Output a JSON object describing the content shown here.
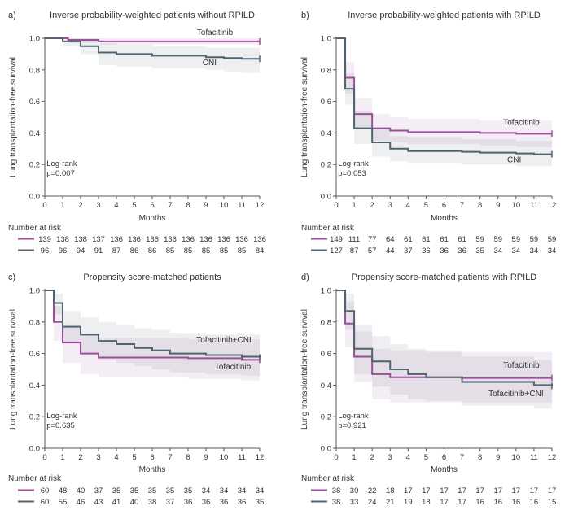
{
  "colors": {
    "tofacitinib": "#9b4f9b",
    "cni": "#4f6470",
    "axis": "#555555",
    "text": "#333333"
  },
  "chart_data": [
    {
      "panel": "a)",
      "type": "line",
      "title": "Inverse probability-weighted patients without RPILD",
      "xlabel": "Months",
      "ylabel": "Lung transplantation-free survival",
      "xlim": [
        0,
        12
      ],
      "ylim": [
        0,
        1
      ],
      "xticks": [
        "0",
        "1",
        "2",
        "3",
        "4",
        "5",
        "6",
        "7",
        "8",
        "9",
        "10",
        "11",
        "12"
      ],
      "yticks": [
        "0.0",
        "0.2",
        "0.4",
        "0.6",
        "0.8",
        "1.0"
      ],
      "logrank_label": "Log-rank",
      "p_value": "p=0.007",
      "risk_title": "Number at risk",
      "series": [
        {
          "key": "tofacitinib",
          "name": "Tofacitinib",
          "color": "#9b4f9b",
          "steps": [
            [
              0,
              1.0
            ],
            [
              1.3,
              0.99
            ],
            [
              3,
              0.98
            ],
            [
              12,
              0.98
            ]
          ],
          "ci": [
            [
              0,
              1.0,
              1.0
            ],
            [
              1.3,
              0.97,
              1.0
            ],
            [
              3,
              0.96,
              1.0
            ],
            [
              12,
              0.96,
              1.0
            ]
          ],
          "risk": [
            "139",
            "138",
            "138",
            "137",
            "136",
            "136",
            "136",
            "136",
            "136",
            "136",
            "136",
            "136",
            "136"
          ]
        },
        {
          "key": "cni",
          "name": "CNI",
          "color": "#4f6470",
          "steps": [
            [
              0,
              1.0
            ],
            [
              1,
              0.98
            ],
            [
              2,
              0.95
            ],
            [
              3,
              0.91
            ],
            [
              4,
              0.9
            ],
            [
              6,
              0.89
            ],
            [
              9,
              0.88
            ],
            [
              10,
              0.875
            ],
            [
              11,
              0.87
            ],
            [
              12,
              0.87
            ]
          ],
          "ci": [
            [
              0,
              1.0,
              1.0
            ],
            [
              1,
              0.95,
              1.0
            ],
            [
              2,
              0.9,
              1.0
            ],
            [
              3,
              0.83,
              0.97
            ],
            [
              4,
              0.82,
              0.96
            ],
            [
              6,
              0.81,
              0.95
            ],
            [
              9,
              0.8,
              0.94
            ],
            [
              10,
              0.79,
              0.94
            ],
            [
              11,
              0.78,
              0.94
            ],
            [
              12,
              0.78,
              0.94
            ]
          ],
          "risk": [
            "96",
            "96",
            "94",
            "91",
            "87",
            "86",
            "86",
            "85",
            "85",
            "85",
            "85",
            "85",
            "84"
          ]
        }
      ],
      "labels": [
        {
          "series": "tofacitinib",
          "text": "Tofacitinib",
          "at": [
            9.5,
            1.02
          ]
        },
        {
          "series": "cni",
          "text": "CNI",
          "at": [
            9.2,
            0.83
          ]
        }
      ],
      "logrank_at": [
        0.1,
        0.19
      ]
    },
    {
      "panel": "b)",
      "type": "line",
      "title": "Inverse probability-weighted patients with RPILD",
      "xlabel": "Months",
      "ylabel": "Lung transplantation-free survival",
      "xlim": [
        0,
        12
      ],
      "ylim": [
        0,
        1
      ],
      "xticks": [
        "0",
        "1",
        "2",
        "3",
        "4",
        "5",
        "6",
        "7",
        "8",
        "9",
        "10",
        "11",
        "12"
      ],
      "yticks": [
        "0.0",
        "0.2",
        "0.4",
        "0.6",
        "0.8",
        "1.0"
      ],
      "logrank_label": "Log-rank",
      "p_value": "p=0.053",
      "risk_title": "Number at risk",
      "series": [
        {
          "key": "tofacitinib",
          "name": "Tofacitinib",
          "color": "#9b4f9b",
          "steps": [
            [
              0,
              1.0
            ],
            [
              0.5,
              0.75
            ],
            [
              1,
              0.52
            ],
            [
              2,
              0.43
            ],
            [
              3,
              0.415
            ],
            [
              4,
              0.405
            ],
            [
              8,
              0.4
            ],
            [
              10,
              0.395
            ],
            [
              12,
              0.395
            ]
          ],
          "ci": [
            [
              0,
              1.0,
              1.0
            ],
            [
              0.5,
              0.65,
              0.85
            ],
            [
              1,
              0.43,
              0.62
            ],
            [
              2,
              0.35,
              0.52
            ],
            [
              3,
              0.34,
              0.5
            ],
            [
              4,
              0.33,
              0.49
            ],
            [
              8,
              0.32,
              0.48
            ],
            [
              10,
              0.31,
              0.48
            ],
            [
              12,
              0.31,
              0.48
            ]
          ],
          "risk": [
            "149",
            "111",
            "77",
            "64",
            "61",
            "61",
            "61",
            "61",
            "59",
            "59",
            "59",
            "59",
            "59"
          ]
        },
        {
          "key": "cni",
          "name": "CNI",
          "color": "#4f6470",
          "steps": [
            [
              0,
              1.0
            ],
            [
              0.5,
              0.68
            ],
            [
              1,
              0.43
            ],
            [
              2,
              0.34
            ],
            [
              3,
              0.3
            ],
            [
              4,
              0.285
            ],
            [
              7,
              0.28
            ],
            [
              8,
              0.275
            ],
            [
              10,
              0.27
            ],
            [
              11,
              0.265
            ],
            [
              12,
              0.265
            ]
          ],
          "ci": [
            [
              0,
              1.0,
              1.0
            ],
            [
              0.5,
              0.58,
              0.78
            ],
            [
              1,
              0.33,
              0.54
            ],
            [
              2,
              0.25,
              0.43
            ],
            [
              3,
              0.22,
              0.38
            ],
            [
              4,
              0.21,
              0.37
            ],
            [
              7,
              0.2,
              0.36
            ],
            [
              8,
              0.2,
              0.36
            ],
            [
              10,
              0.19,
              0.35
            ],
            [
              11,
              0.19,
              0.35
            ],
            [
              12,
              0.19,
              0.35
            ]
          ],
          "risk": [
            "127",
            "87",
            "57",
            "44",
            "37",
            "36",
            "36",
            "36",
            "35",
            "34",
            "34",
            "34",
            "34"
          ]
        }
      ],
      "labels": [
        {
          "series": "tofacitinib",
          "text": "Tofacitinib",
          "at": [
            10.3,
            0.45
          ]
        },
        {
          "series": "cni",
          "text": "CNI",
          "at": [
            9.9,
            0.215
          ]
        }
      ],
      "logrank_at": [
        0.1,
        0.19
      ]
    },
    {
      "panel": "c)",
      "type": "line",
      "title": "Propensity score-matched patients",
      "xlabel": "Months",
      "ylabel": "Lung transplantation-free survival",
      "xlim": [
        0,
        12
      ],
      "ylim": [
        0,
        1
      ],
      "xticks": [
        "0",
        "1",
        "2",
        "3",
        "4",
        "5",
        "6",
        "7",
        "8",
        "9",
        "10",
        "11",
        "12"
      ],
      "yticks": [
        "0.0",
        "0.2",
        "0.4",
        "0.6",
        "0.8",
        "1.0"
      ],
      "logrank_label": "Log-rank",
      "p_value": "p=0.635",
      "risk_title": "Number at risk",
      "series": [
        {
          "key": "tofacitinib",
          "name": "Tofacitinib",
          "color": "#9b4f9b",
          "steps": [
            [
              0,
              1.0
            ],
            [
              0.5,
              0.8
            ],
            [
              1,
              0.67
            ],
            [
              2,
              0.6
            ],
            [
              3,
              0.575
            ],
            [
              5,
              0.575
            ],
            [
              8,
              0.57
            ],
            [
              11,
              0.56
            ],
            [
              12,
              0.56
            ]
          ],
          "ci": [
            [
              0,
              1.0,
              1.0
            ],
            [
              0.5,
              0.68,
              0.9
            ],
            [
              1,
              0.54,
              0.78
            ],
            [
              2,
              0.47,
              0.72
            ],
            [
              3,
              0.45,
              0.7
            ],
            [
              5,
              0.45,
              0.7
            ],
            [
              8,
              0.44,
              0.69
            ],
            [
              11,
              0.43,
              0.69
            ],
            [
              12,
              0.43,
              0.69
            ]
          ],
          "risk": [
            "60",
            "48",
            "40",
            "37",
            "35",
            "35",
            "35",
            "35",
            "35",
            "34",
            "34",
            "34",
            "34"
          ]
        },
        {
          "key": "cni",
          "name": "Tofacitinib+CNI",
          "color": "#4f6470",
          "steps": [
            [
              0,
              1.0
            ],
            [
              0.5,
              0.92
            ],
            [
              1,
              0.77
            ],
            [
              2,
              0.72
            ],
            [
              3,
              0.68
            ],
            [
              4,
              0.66
            ],
            [
              5,
              0.635
            ],
            [
              6,
              0.62
            ],
            [
              7,
              0.6
            ],
            [
              9,
              0.59
            ],
            [
              11,
              0.58
            ],
            [
              12,
              0.575
            ]
          ],
          "ci": [
            [
              0,
              1.0,
              1.0
            ],
            [
              0.5,
              0.85,
              0.98
            ],
            [
              1,
              0.66,
              0.87
            ],
            [
              2,
              0.6,
              0.83
            ],
            [
              3,
              0.56,
              0.8
            ],
            [
              4,
              0.54,
              0.78
            ],
            [
              5,
              0.52,
              0.76
            ],
            [
              6,
              0.5,
              0.75
            ],
            [
              7,
              0.48,
              0.73
            ],
            [
              9,
              0.47,
              0.72
            ],
            [
              11,
              0.46,
              0.72
            ],
            [
              12,
              0.45,
              0.71
            ]
          ],
          "risk": [
            "60",
            "55",
            "46",
            "43",
            "41",
            "40",
            "38",
            "37",
            "36",
            "36",
            "36",
            "36",
            "35"
          ]
        }
      ],
      "labels": [
        {
          "series": "cni",
          "text": "Tofacitinib+CNI",
          "at": [
            10.0,
            0.67
          ]
        },
        {
          "series": "tofacitinib",
          "text": "Tofacitinib",
          "at": [
            10.5,
            0.5
          ]
        }
      ],
      "logrank_at": [
        0.1,
        0.19
      ]
    },
    {
      "panel": "d)",
      "type": "line",
      "title": "Propensity score-matched patients with RPILD",
      "xlabel": "Months",
      "ylabel": "Lung transplantation-free survival",
      "xlim": [
        0,
        12
      ],
      "ylim": [
        0,
        1
      ],
      "xticks": [
        "0",
        "1",
        "2",
        "3",
        "4",
        "5",
        "6",
        "7",
        "8",
        "9",
        "10",
        "11",
        "12"
      ],
      "yticks": [
        "0.0",
        "0.2",
        "0.4",
        "0.6",
        "0.8",
        "1.0"
      ],
      "logrank_label": "Log-rank",
      "p_value": "p=0.921",
      "risk_title": "Number at risk",
      "series": [
        {
          "key": "tofacitinib",
          "name": "Tofacitinib",
          "color": "#9b4f9b",
          "steps": [
            [
              0,
              1.0
            ],
            [
              0.5,
              0.79
            ],
            [
              1,
              0.58
            ],
            [
              2,
              0.47
            ],
            [
              3,
              0.45
            ],
            [
              7,
              0.445
            ],
            [
              12,
              0.445
            ]
          ],
          "ci": [
            [
              0,
              1.0,
              1.0
            ],
            [
              0.5,
              0.64,
              0.93
            ],
            [
              1,
              0.42,
              0.74
            ],
            [
              2,
              0.31,
              0.63
            ],
            [
              3,
              0.29,
              0.62
            ],
            [
              7,
              0.29,
              0.61
            ],
            [
              12,
              0.29,
              0.61
            ]
          ],
          "risk": [
            "38",
            "30",
            "22",
            "18",
            "17",
            "17",
            "17",
            "17",
            "17",
            "17",
            "17",
            "17",
            "17"
          ]
        },
        {
          "key": "cni",
          "name": "Tofacitinib+CNI",
          "color": "#4f6470",
          "steps": [
            [
              0,
              1.0
            ],
            [
              0.5,
              0.87
            ],
            [
              1,
              0.63
            ],
            [
              2,
              0.55
            ],
            [
              3,
              0.5
            ],
            [
              4,
              0.47
            ],
            [
              5,
              0.45
            ],
            [
              7,
              0.42
            ],
            [
              11,
              0.4
            ],
            [
              12,
              0.395
            ]
          ],
          "ci": [
            [
              0,
              1.0,
              1.0
            ],
            [
              0.5,
              0.75,
              0.98
            ],
            [
              1,
              0.47,
              0.78
            ],
            [
              2,
              0.39,
              0.71
            ],
            [
              3,
              0.34,
              0.66
            ],
            [
              4,
              0.31,
              0.63
            ],
            [
              5,
              0.3,
              0.61
            ],
            [
              7,
              0.27,
              0.58
            ],
            [
              11,
              0.25,
              0.56
            ],
            [
              12,
              0.25,
              0.55
            ]
          ],
          "risk": [
            "38",
            "33",
            "24",
            "21",
            "19",
            "18",
            "17",
            "17",
            "16",
            "16",
            "16",
            "16",
            "15"
          ]
        }
      ],
      "labels": [
        {
          "series": "tofacitinib",
          "text": "Tofacitinib",
          "at": [
            10.3,
            0.51
          ]
        },
        {
          "series": "cni",
          "text": "Tofacitinib+CNI",
          "at": [
            10.0,
            0.33
          ]
        }
      ],
      "logrank_at": [
        0.1,
        0.19
      ]
    }
  ]
}
